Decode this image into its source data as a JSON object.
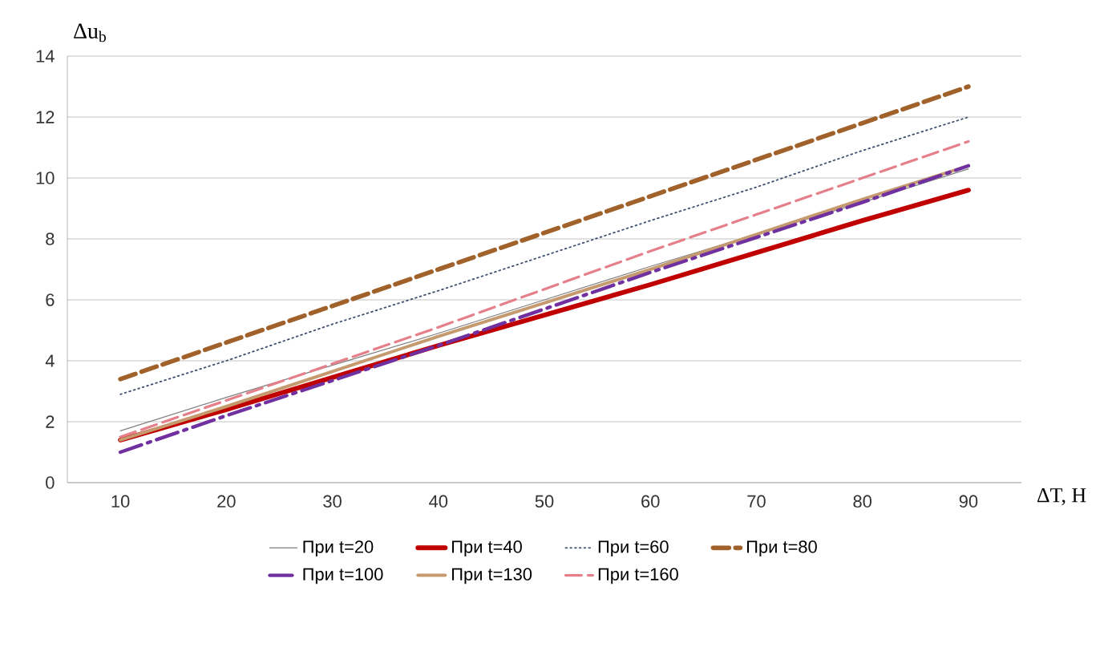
{
  "chart_data": {
    "type": "line",
    "xlabel": "ΔT, Н",
    "ylabel": "Δu$_{b}$",
    "categories": [
      "10",
      "20",
      "30",
      "40",
      "50",
      "60",
      "70",
      "80",
      "90"
    ],
    "ylim": [
      0,
      14
    ],
    "yticks": [
      0,
      2,
      4,
      6,
      8,
      10,
      12,
      14
    ],
    "grid": "y",
    "legend": "bottom",
    "series": [
      {
        "name": "При t=20",
        "color": "#7f7f7f",
        "line_style": "solid",
        "values": [
          1.7,
          2.8,
          3.85,
          4.9,
          6.0,
          7.1,
          8.15,
          9.2,
          10.3
        ]
      },
      {
        "name": "При t=40",
        "color": "#c00000",
        "line_style": "solid",
        "values": [
          1.4,
          2.4,
          3.45,
          4.5,
          5.5,
          6.5,
          7.55,
          8.6,
          9.6
        ]
      },
      {
        "name": "При t=60",
        "color": "#3f4f6f",
        "line_style": "dotted",
        "values": [
          2.9,
          4.0,
          5.2,
          6.3,
          7.45,
          8.6,
          9.7,
          10.9,
          12.0
        ]
      },
      {
        "name": "При t=80",
        "color": "#a0622a",
        "line_style": "dashed",
        "values": [
          3.4,
          4.6,
          5.8,
          7.0,
          8.2,
          9.4,
          10.6,
          11.8,
          13.0
        ]
      },
      {
        "name": "При t=100",
        "color": "#7030a0",
        "line_style": "dashed",
        "values": [
          1.0,
          2.2,
          3.35,
          4.5,
          5.7,
          6.9,
          8.05,
          9.2,
          10.4
        ]
      },
      {
        "name": "При t=130",
        "color": "#c59a6e",
        "line_style": "solid",
        "values": [
          1.4,
          2.5,
          3.65,
          4.8,
          5.9,
          7.0,
          8.15,
          9.3,
          10.4
        ]
      },
      {
        "name": "При t=160",
        "color": "#e57f8a",
        "line_style": "dashed",
        "values": [
          1.5,
          2.7,
          3.9,
          5.1,
          6.35,
          7.6,
          8.8,
          10.0,
          11.2
        ]
      }
    ]
  }
}
